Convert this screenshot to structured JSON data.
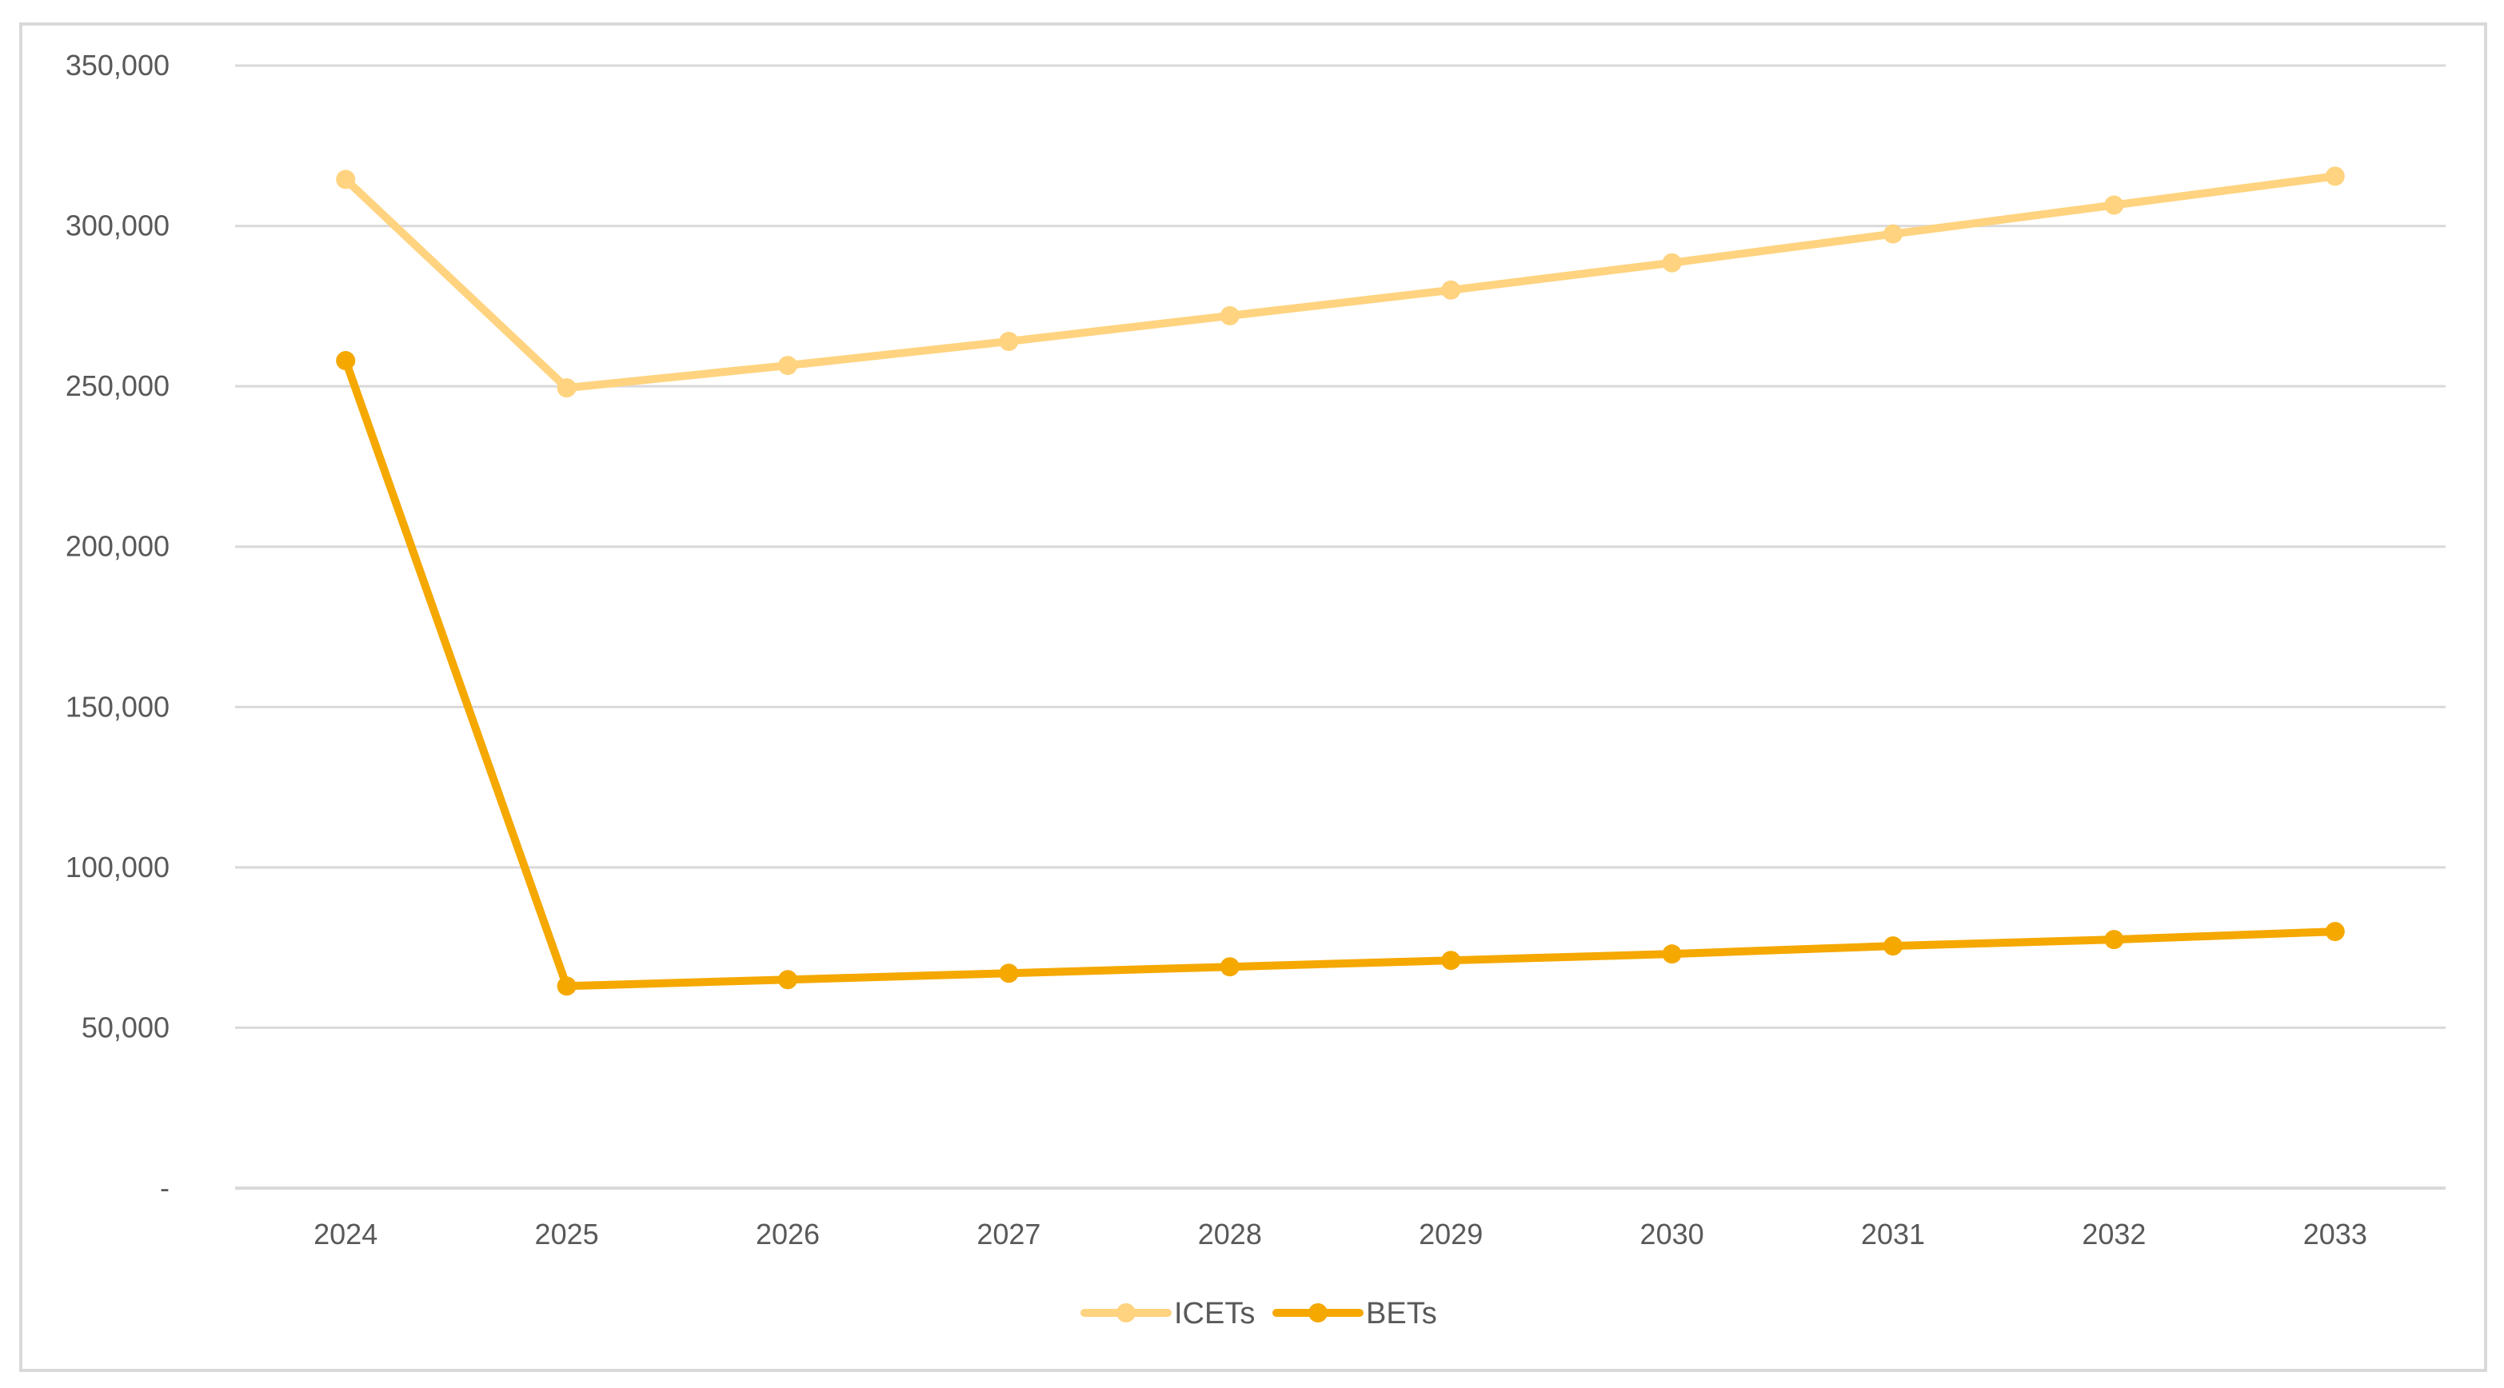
{
  "chart_data": {
    "type": "line",
    "title": "",
    "xlabel": "",
    "ylabel": "",
    "categories": [
      "2024",
      "2025",
      "2026",
      "2027",
      "2028",
      "2029",
      "2030",
      "2031",
      "2032",
      "2033"
    ],
    "ylim": [
      0,
      350000
    ],
    "yticks": [
      0,
      50000,
      100000,
      150000,
      200000,
      250000,
      300000,
      350000
    ],
    "ytick_labels": [
      "-",
      "50,000",
      "100,000",
      "150,000",
      "200,000",
      "250,000",
      "300,000",
      "350,000"
    ],
    "grid": true,
    "legend_position": "bottom",
    "series": [
      {
        "name": "ICETs",
        "color": "#ffd37f",
        "marker": "circle",
        "values": [
          314500,
          249500,
          256500,
          264000,
          272000,
          280000,
          288500,
          297500,
          306500,
          315500
        ]
      },
      {
        "name": "BETs",
        "color": "#f5a800",
        "marker": "circle",
        "values": [
          258000,
          63000,
          65000,
          67000,
          69000,
          71000,
          73000,
          75500,
          77500,
          80000
        ]
      }
    ]
  }
}
